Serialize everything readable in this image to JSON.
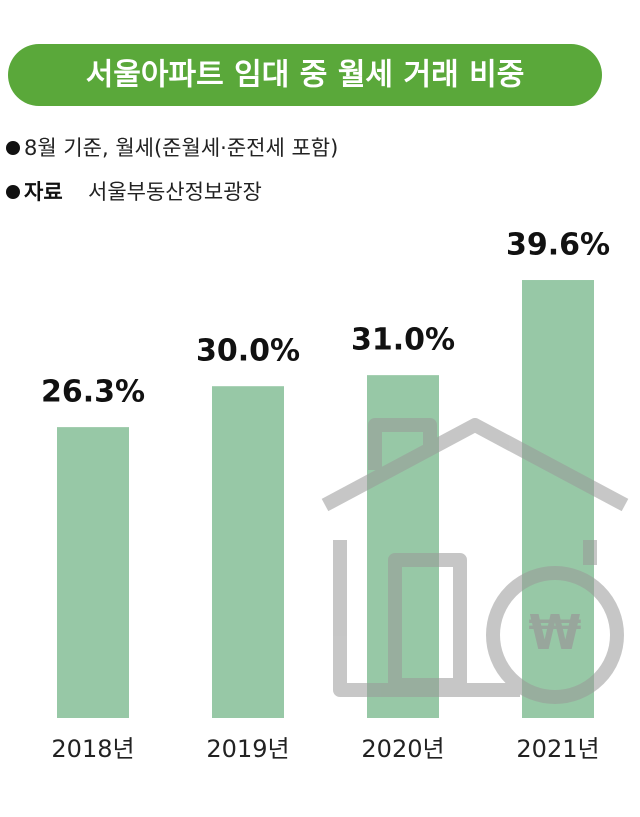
{
  "chart_data": {
    "type": "bar",
    "title": "서울아파트 임대 중 월세 거래 비중",
    "subtitle": "8월 기준, 월세(준월세·준전세 포함)",
    "source_label": "자료",
    "source": "서울부동산정보광장",
    "categories": [
      "2018년",
      "2019년",
      "2020년",
      "2021년"
    ],
    "values": [
      26.3,
      30.0,
      31.0,
      39.6
    ],
    "value_labels": [
      "26.3%",
      "30.0%",
      "31.0%",
      "39.6%"
    ],
    "color": "#97c8a6"
  }
}
